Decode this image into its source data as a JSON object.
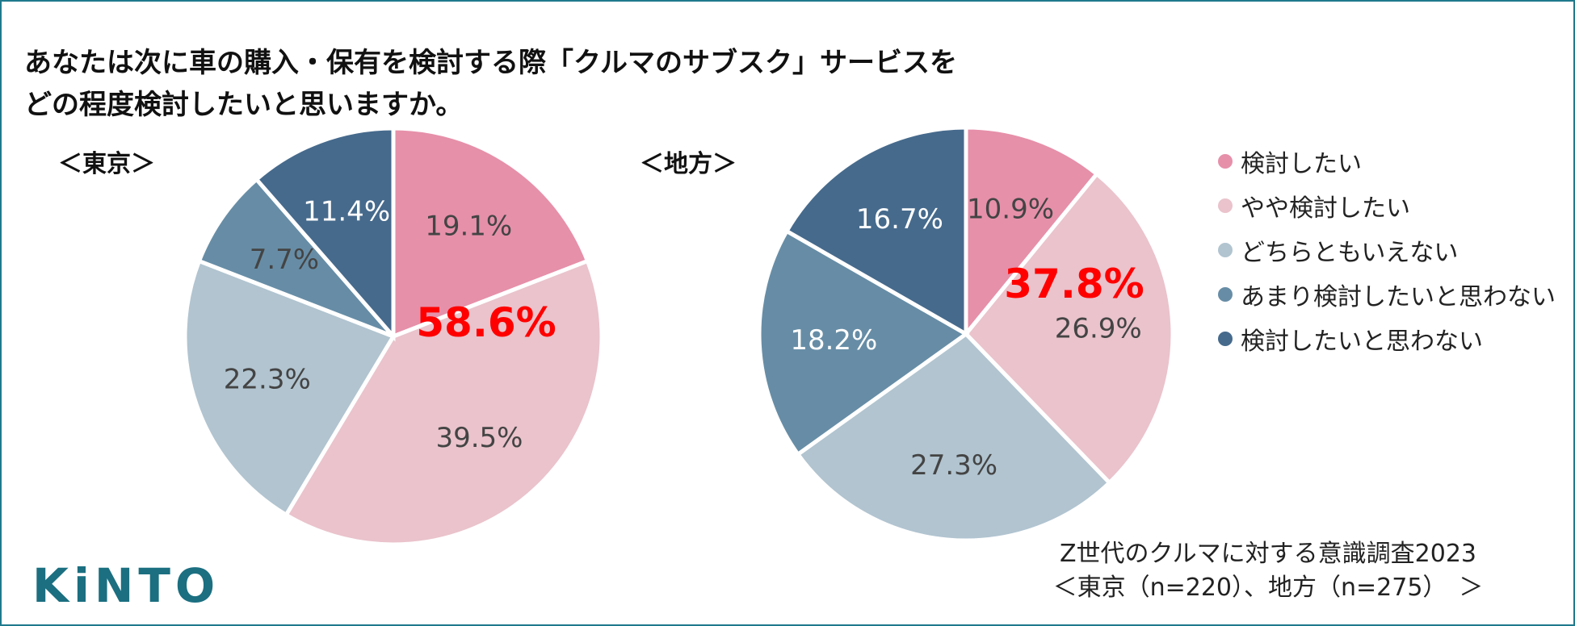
{
  "title": {
    "line1": "あなたは次に車の購入・保有を検討する際「クルマのサブスク」サービスを",
    "line2": "どの程度検討したいと思いますか。"
  },
  "colors": {
    "slices": [
      "#e690aa",
      "#eac3cc",
      "#b1c4d0",
      "#678da6",
      "#466a8c"
    ],
    "highlight": "#ff0000",
    "frame": "#1f7a8c",
    "logo": "#1b6f80"
  },
  "legend": [
    "検討したい",
    "やや検討したい",
    "どちらともいえない",
    "あまり検討したいと思わない",
    "検討したいと思わない"
  ],
  "chart_data": [
    {
      "type": "pie",
      "title": "＜東京＞",
      "categories": [
        "検討したい",
        "やや検討したい",
        "どちらともいえない",
        "あまり検討したいと思わない",
        "検討したいと思わない"
      ],
      "values": [
        19.1,
        39.5,
        22.3,
        7.7,
        11.4
      ],
      "labels": [
        "19.1%",
        "39.5%",
        "22.3%",
        "7.7%",
        "11.4%"
      ],
      "highlight_value": "58.6%"
    },
    {
      "type": "pie",
      "title": "＜地方＞",
      "categories": [
        "検討したい",
        "やや検討したい",
        "どちらともいえない",
        "あまり検討したいと思わない",
        "検討したいと思わない"
      ],
      "values": [
        10.9,
        26.9,
        27.3,
        18.2,
        16.7
      ],
      "labels": [
        "10.9%",
        "26.9%",
        "27.3%",
        "18.2%",
        "16.7%"
      ],
      "highlight_value": "37.8%"
    }
  ],
  "source": {
    "line1": "Z世代のクルマに対する意識調査2023",
    "line2": "＜東京（n=220）、地方（n=275）　＞"
  },
  "logo": {
    "text": "KiNTO"
  }
}
